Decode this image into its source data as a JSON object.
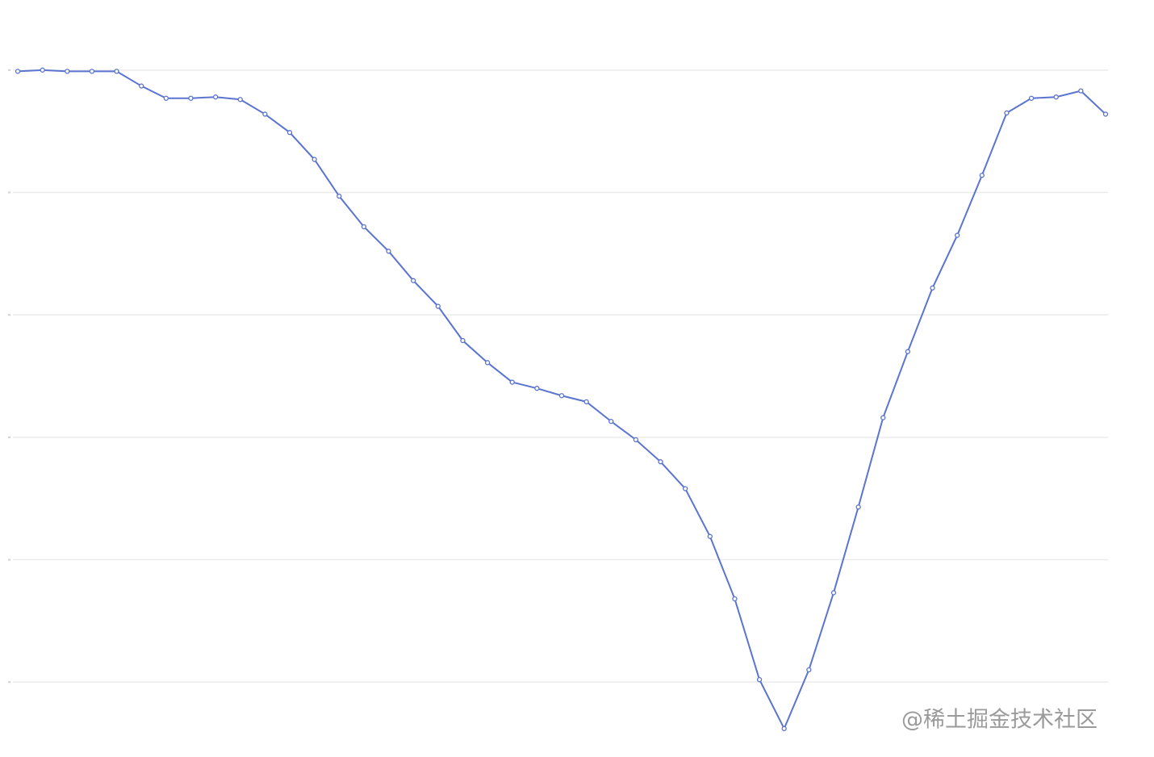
{
  "chart_data": {
    "type": "line",
    "categories": [
      null,
      null,
      null,
      null,
      null,
      null,
      null,
      null,
      null,
      null,
      null,
      null,
      null,
      null,
      null,
      null,
      null,
      null,
      null,
      null,
      null,
      null,
      null,
      null,
      null,
      null,
      null,
      null,
      null,
      null,
      null,
      null,
      null,
      null,
      null,
      null,
      null,
      null,
      null,
      null,
      null,
      null,
      null,
      null,
      null
    ],
    "series": [
      {
        "color": "#5b74d0",
        "values": [
          4.99,
          5.0,
          4.99,
          4.99,
          4.99,
          4.87,
          4.77,
          4.77,
          4.78,
          4.76,
          4.64,
          4.49,
          4.27,
          3.97,
          3.72,
          3.52,
          3.28,
          3.07,
          2.79,
          2.61,
          2.45,
          2.4,
          2.34,
          2.29,
          2.13,
          1.98,
          1.8,
          1.58,
          1.19,
          0.68,
          0.02,
          -0.38,
          0.1,
          0.73,
          1.43,
          2.16,
          2.7,
          3.22,
          3.65,
          4.14,
          4.65,
          4.77,
          4.78,
          4.83,
          4.64
        ]
      }
    ],
    "ylim": [
      -0.5,
      5.5
    ],
    "yticks": [
      0,
      1,
      2,
      3,
      4,
      5
    ],
    "grid": true,
    "watermark": "@稀土掘金技术社区"
  }
}
